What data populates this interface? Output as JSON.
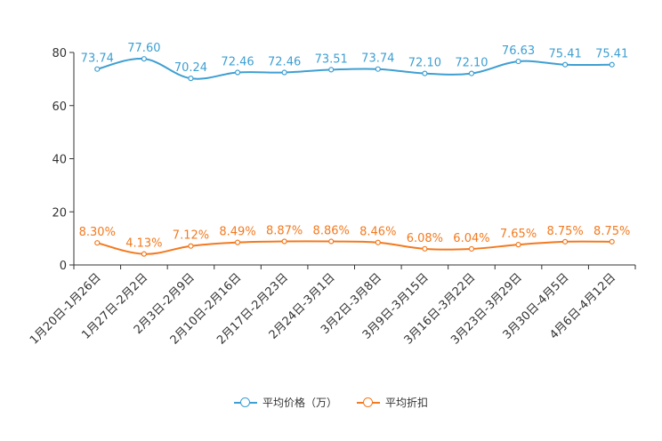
{
  "chart_data": {
    "type": "line",
    "categories": [
      "1月20日-1月26日",
      "1月27日-2月2日",
      "2月3日-2月9日",
      "2月10日-2月16日",
      "2月17日-2月23日",
      "2月24日-3月1日",
      "3月2日-3月8日",
      "3月9日-3月15日",
      "3月16日-3月22日",
      "3月23日-3月29日",
      "3月30日-4月5日",
      "4月6日-4月12日"
    ],
    "series": [
      {
        "name": "平均价格（万）",
        "color": "#3e9fd2",
        "values": [
          73.74,
          77.6,
          70.24,
          72.46,
          72.46,
          73.51,
          73.74,
          72.1,
          72.1,
          76.63,
          75.41,
          75.41
        ],
        "labels": [
          "73.74",
          "77.60",
          "70.24",
          "72.46",
          "72.46",
          "73.51",
          "73.74",
          "72.10",
          "72.10",
          "76.63",
          "75.41",
          "75.41"
        ]
      },
      {
        "name": "平均折扣",
        "color": "#f37a1f",
        "values": [
          8.3,
          4.13,
          7.12,
          8.49,
          8.87,
          8.86,
          8.46,
          6.08,
          6.04,
          7.65,
          8.75,
          8.75
        ],
        "labels": [
          "8.30%",
          "4.13%",
          "7.12%",
          "8.49%",
          "8.87%",
          "8.86%",
          "8.46%",
          "6.08%",
          "6.04%",
          "7.65%",
          "8.75%",
          "8.75%"
        ]
      }
    ],
    "yticks": [
      "0",
      "20",
      "40",
      "60",
      "80"
    ],
    "ylim": [
      0,
      80
    ],
    "title": "",
    "xlabel": "",
    "ylabel": "",
    "grid": false,
    "legend_position": "bottom-center"
  }
}
